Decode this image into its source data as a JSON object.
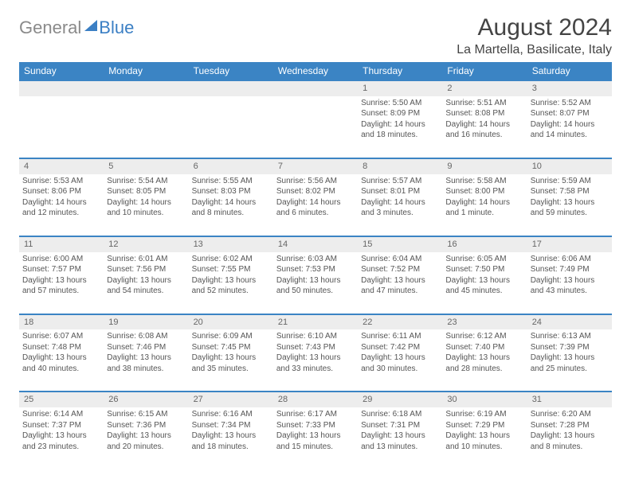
{
  "logo": {
    "part1": "General",
    "part2": "Blue"
  },
  "title": "August 2024",
  "location": "La Martella, Basilicate, Italy",
  "colors": {
    "header_bg": "#3b84c4",
    "header_text": "#ffffff",
    "daynum_bg": "#ededed",
    "border_top": "#3b84c4",
    "body_text": "#555555",
    "logo_gray": "#8a8a8a",
    "logo_blue": "#3b7fc4"
  },
  "weekdays": [
    "Sunday",
    "Monday",
    "Tuesday",
    "Wednesday",
    "Thursday",
    "Friday",
    "Saturday"
  ],
  "weeks": [
    {
      "nums": [
        "",
        "",
        "",
        "",
        "1",
        "2",
        "3"
      ],
      "cells": [
        null,
        null,
        null,
        null,
        {
          "sunrise": "Sunrise: 5:50 AM",
          "sunset": "Sunset: 8:09 PM",
          "day1": "Daylight: 14 hours",
          "day2": "and 18 minutes."
        },
        {
          "sunrise": "Sunrise: 5:51 AM",
          "sunset": "Sunset: 8:08 PM",
          "day1": "Daylight: 14 hours",
          "day2": "and 16 minutes."
        },
        {
          "sunrise": "Sunrise: 5:52 AM",
          "sunset": "Sunset: 8:07 PM",
          "day1": "Daylight: 14 hours",
          "day2": "and 14 minutes."
        }
      ]
    },
    {
      "nums": [
        "4",
        "5",
        "6",
        "7",
        "8",
        "9",
        "10"
      ],
      "cells": [
        {
          "sunrise": "Sunrise: 5:53 AM",
          "sunset": "Sunset: 8:06 PM",
          "day1": "Daylight: 14 hours",
          "day2": "and 12 minutes."
        },
        {
          "sunrise": "Sunrise: 5:54 AM",
          "sunset": "Sunset: 8:05 PM",
          "day1": "Daylight: 14 hours",
          "day2": "and 10 minutes."
        },
        {
          "sunrise": "Sunrise: 5:55 AM",
          "sunset": "Sunset: 8:03 PM",
          "day1": "Daylight: 14 hours",
          "day2": "and 8 minutes."
        },
        {
          "sunrise": "Sunrise: 5:56 AM",
          "sunset": "Sunset: 8:02 PM",
          "day1": "Daylight: 14 hours",
          "day2": "and 6 minutes."
        },
        {
          "sunrise": "Sunrise: 5:57 AM",
          "sunset": "Sunset: 8:01 PM",
          "day1": "Daylight: 14 hours",
          "day2": "and 3 minutes."
        },
        {
          "sunrise": "Sunrise: 5:58 AM",
          "sunset": "Sunset: 8:00 PM",
          "day1": "Daylight: 14 hours",
          "day2": "and 1 minute."
        },
        {
          "sunrise": "Sunrise: 5:59 AM",
          "sunset": "Sunset: 7:58 PM",
          "day1": "Daylight: 13 hours",
          "day2": "and 59 minutes."
        }
      ]
    },
    {
      "nums": [
        "11",
        "12",
        "13",
        "14",
        "15",
        "16",
        "17"
      ],
      "cells": [
        {
          "sunrise": "Sunrise: 6:00 AM",
          "sunset": "Sunset: 7:57 PM",
          "day1": "Daylight: 13 hours",
          "day2": "and 57 minutes."
        },
        {
          "sunrise": "Sunrise: 6:01 AM",
          "sunset": "Sunset: 7:56 PM",
          "day1": "Daylight: 13 hours",
          "day2": "and 54 minutes."
        },
        {
          "sunrise": "Sunrise: 6:02 AM",
          "sunset": "Sunset: 7:55 PM",
          "day1": "Daylight: 13 hours",
          "day2": "and 52 minutes."
        },
        {
          "sunrise": "Sunrise: 6:03 AM",
          "sunset": "Sunset: 7:53 PM",
          "day1": "Daylight: 13 hours",
          "day2": "and 50 minutes."
        },
        {
          "sunrise": "Sunrise: 6:04 AM",
          "sunset": "Sunset: 7:52 PM",
          "day1": "Daylight: 13 hours",
          "day2": "and 47 minutes."
        },
        {
          "sunrise": "Sunrise: 6:05 AM",
          "sunset": "Sunset: 7:50 PM",
          "day1": "Daylight: 13 hours",
          "day2": "and 45 minutes."
        },
        {
          "sunrise": "Sunrise: 6:06 AM",
          "sunset": "Sunset: 7:49 PM",
          "day1": "Daylight: 13 hours",
          "day2": "and 43 minutes."
        }
      ]
    },
    {
      "nums": [
        "18",
        "19",
        "20",
        "21",
        "22",
        "23",
        "24"
      ],
      "cells": [
        {
          "sunrise": "Sunrise: 6:07 AM",
          "sunset": "Sunset: 7:48 PM",
          "day1": "Daylight: 13 hours",
          "day2": "and 40 minutes."
        },
        {
          "sunrise": "Sunrise: 6:08 AM",
          "sunset": "Sunset: 7:46 PM",
          "day1": "Daylight: 13 hours",
          "day2": "and 38 minutes."
        },
        {
          "sunrise": "Sunrise: 6:09 AM",
          "sunset": "Sunset: 7:45 PM",
          "day1": "Daylight: 13 hours",
          "day2": "and 35 minutes."
        },
        {
          "sunrise": "Sunrise: 6:10 AM",
          "sunset": "Sunset: 7:43 PM",
          "day1": "Daylight: 13 hours",
          "day2": "and 33 minutes."
        },
        {
          "sunrise": "Sunrise: 6:11 AM",
          "sunset": "Sunset: 7:42 PM",
          "day1": "Daylight: 13 hours",
          "day2": "and 30 minutes."
        },
        {
          "sunrise": "Sunrise: 6:12 AM",
          "sunset": "Sunset: 7:40 PM",
          "day1": "Daylight: 13 hours",
          "day2": "and 28 minutes."
        },
        {
          "sunrise": "Sunrise: 6:13 AM",
          "sunset": "Sunset: 7:39 PM",
          "day1": "Daylight: 13 hours",
          "day2": "and 25 minutes."
        }
      ]
    },
    {
      "nums": [
        "25",
        "26",
        "27",
        "28",
        "29",
        "30",
        "31"
      ],
      "cells": [
        {
          "sunrise": "Sunrise: 6:14 AM",
          "sunset": "Sunset: 7:37 PM",
          "day1": "Daylight: 13 hours",
          "day2": "and 23 minutes."
        },
        {
          "sunrise": "Sunrise: 6:15 AM",
          "sunset": "Sunset: 7:36 PM",
          "day1": "Daylight: 13 hours",
          "day2": "and 20 minutes."
        },
        {
          "sunrise": "Sunrise: 6:16 AM",
          "sunset": "Sunset: 7:34 PM",
          "day1": "Daylight: 13 hours",
          "day2": "and 18 minutes."
        },
        {
          "sunrise": "Sunrise: 6:17 AM",
          "sunset": "Sunset: 7:33 PM",
          "day1": "Daylight: 13 hours",
          "day2": "and 15 minutes."
        },
        {
          "sunrise": "Sunrise: 6:18 AM",
          "sunset": "Sunset: 7:31 PM",
          "day1": "Daylight: 13 hours",
          "day2": "and 13 minutes."
        },
        {
          "sunrise": "Sunrise: 6:19 AM",
          "sunset": "Sunset: 7:29 PM",
          "day1": "Daylight: 13 hours",
          "day2": "and 10 minutes."
        },
        {
          "sunrise": "Sunrise: 6:20 AM",
          "sunset": "Sunset: 7:28 PM",
          "day1": "Daylight: 13 hours",
          "day2": "and 8 minutes."
        }
      ]
    }
  ]
}
